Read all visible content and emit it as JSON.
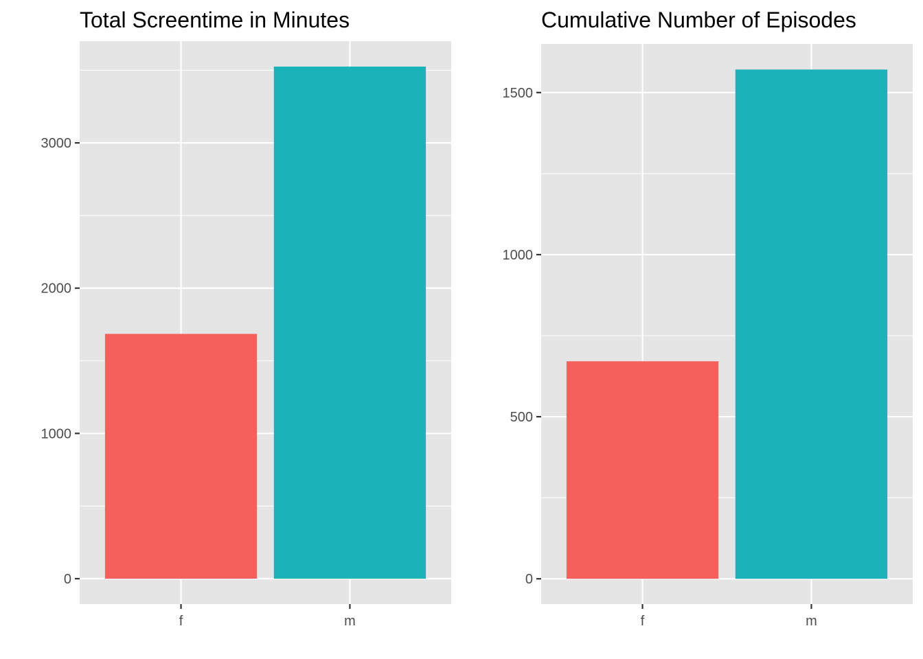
{
  "chart_data": [
    {
      "type": "bar",
      "title": "Total Screentime in Minutes",
      "xlabel": "",
      "ylabel": "",
      "categories": [
        "f",
        "m"
      ],
      "values": [
        1685,
        3525
      ],
      "colors": [
        "#f5605c",
        "#19b3b9"
      ],
      "ylim": [
        -175,
        3700
      ],
      "yticks": [
        0,
        1000,
        2000,
        3000
      ],
      "ytick_labels": [
        "0",
        "1000",
        "2000",
        "3000"
      ],
      "grid": true,
      "legend": "none"
    },
    {
      "type": "bar",
      "title": "Cumulative Number of Episodes",
      "xlabel": "",
      "ylabel": "",
      "categories": [
        "f",
        "m"
      ],
      "values": [
        671,
        1571
      ],
      "colors": [
        "#f5605c",
        "#19b3b9"
      ],
      "ylim": [
        -78,
        1650
      ],
      "yticks": [
        0,
        500,
        1000,
        1500
      ],
      "ytick_labels": [
        "0",
        "500",
        "1000",
        "1500"
      ],
      "grid": true,
      "legend": "none"
    }
  ]
}
